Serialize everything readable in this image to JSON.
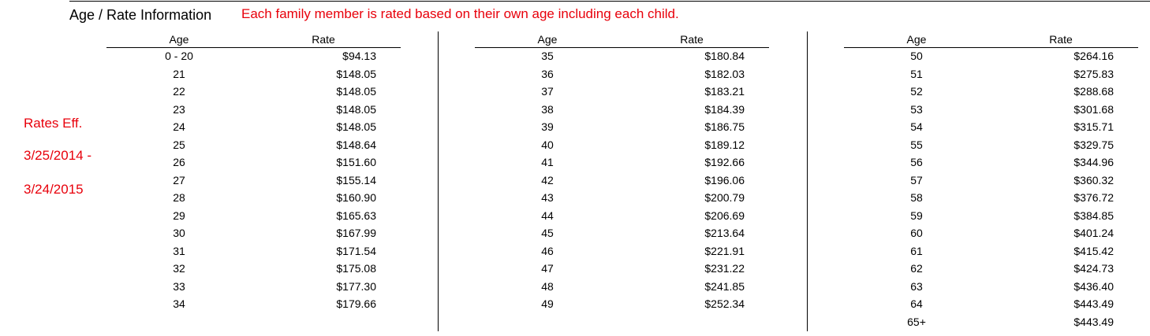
{
  "header": {
    "title": "Age / Rate Information",
    "notice": "Each family member is rated based on their own age including each child."
  },
  "effective": {
    "line1": "Rates Eff.",
    "line2": "3/25/2014 -",
    "line3": "3/24/2015"
  },
  "colors": {
    "notice": "#e8000b",
    "text": "#000000"
  },
  "columns": [
    {
      "age_header": "Age",
      "rate_header": "Rate",
      "rows": [
        {
          "age": "0 - 20",
          "rate": "$94.13"
        },
        {
          "age": "21",
          "rate": "$148.05"
        },
        {
          "age": "22",
          "rate": "$148.05"
        },
        {
          "age": "23",
          "rate": "$148.05"
        },
        {
          "age": "24",
          "rate": "$148.05"
        },
        {
          "age": "25",
          "rate": "$148.64"
        },
        {
          "age": "26",
          "rate": "$151.60"
        },
        {
          "age": "27",
          "rate": "$155.14"
        },
        {
          "age": "28",
          "rate": "$160.90"
        },
        {
          "age": "29",
          "rate": "$165.63"
        },
        {
          "age": "30",
          "rate": "$167.99"
        },
        {
          "age": "31",
          "rate": "$171.54"
        },
        {
          "age": "32",
          "rate": "$175.08"
        },
        {
          "age": "33",
          "rate": "$177.30"
        },
        {
          "age": "34",
          "rate": "$179.66"
        }
      ]
    },
    {
      "age_header": "Age",
      "rate_header": "Rate",
      "rows": [
        {
          "age": "35",
          "rate": "$180.84"
        },
        {
          "age": "36",
          "rate": "$182.03"
        },
        {
          "age": "37",
          "rate": "$183.21"
        },
        {
          "age": "38",
          "rate": "$184.39"
        },
        {
          "age": "39",
          "rate": "$186.75"
        },
        {
          "age": "40",
          "rate": "$189.12"
        },
        {
          "age": "41",
          "rate": "$192.66"
        },
        {
          "age": "42",
          "rate": "$196.06"
        },
        {
          "age": "43",
          "rate": "$200.79"
        },
        {
          "age": "44",
          "rate": "$206.69"
        },
        {
          "age": "45",
          "rate": "$213.64"
        },
        {
          "age": "46",
          "rate": "$221.91"
        },
        {
          "age": "47",
          "rate": "$231.22"
        },
        {
          "age": "48",
          "rate": "$241.85"
        },
        {
          "age": "49",
          "rate": "$252.34"
        }
      ]
    },
    {
      "age_header": "Age",
      "rate_header": "Rate",
      "rows": [
        {
          "age": "50",
          "rate": "$264.16"
        },
        {
          "age": "51",
          "rate": "$275.83"
        },
        {
          "age": "52",
          "rate": "$288.68"
        },
        {
          "age": "53",
          "rate": "$301.68"
        },
        {
          "age": "54",
          "rate": "$315.71"
        },
        {
          "age": "55",
          "rate": "$329.75"
        },
        {
          "age": "56",
          "rate": "$344.96"
        },
        {
          "age": "57",
          "rate": "$360.32"
        },
        {
          "age": "58",
          "rate": "$376.72"
        },
        {
          "age": "59",
          "rate": "$384.85"
        },
        {
          "age": "60",
          "rate": "$401.24"
        },
        {
          "age": "61",
          "rate": "$415.42"
        },
        {
          "age": "62",
          "rate": "$424.73"
        },
        {
          "age": "63",
          "rate": "$436.40"
        },
        {
          "age": "64",
          "rate": "$443.49"
        },
        {
          "age": "65+",
          "rate": "$443.49"
        }
      ]
    }
  ]
}
